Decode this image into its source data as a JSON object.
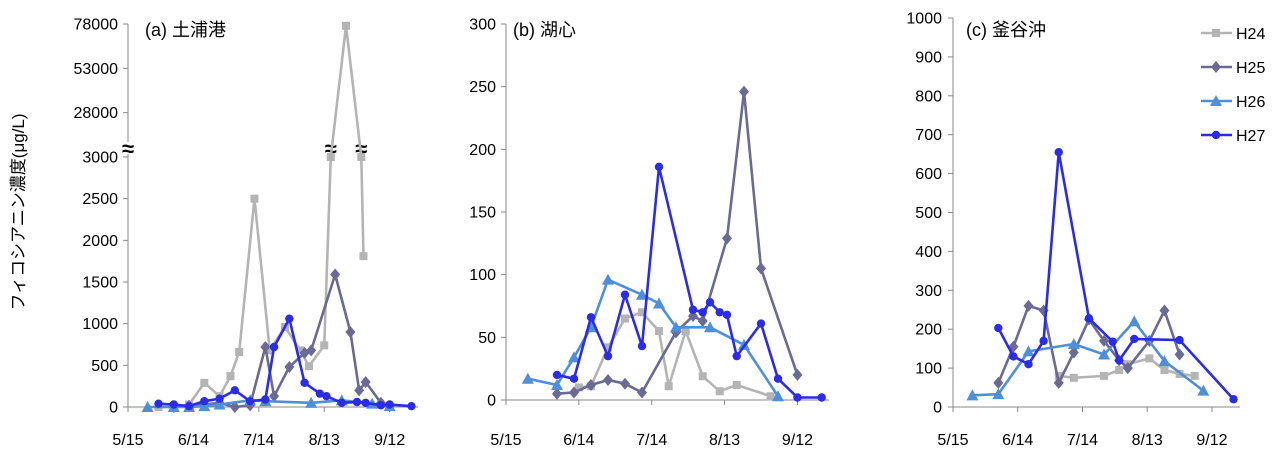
{
  "y_axis_label": "フィコシアニン濃度(μg/L)",
  "colors": {
    "H24": "#b4b4b4",
    "H25": "#6a6a94",
    "H26": "#4f8fd9",
    "H27": "#2b2bea"
  },
  "break_symbol": "≈",
  "chart_data": [
    {
      "type": "line",
      "title": "(a) 土浦港",
      "x_type": "date",
      "xticks": [
        "5/15",
        "6/14",
        "7/14",
        "8/13",
        "9/12"
      ],
      "xlim": [
        "5/15",
        "9/25"
      ],
      "y_axis": {
        "broken": true,
        "lower_range": [
          0,
          3000
        ],
        "upper_range": [
          3000,
          78000
        ],
        "ticks": [
          "0",
          "500",
          "1000",
          "1500",
          "2000",
          "2500",
          "3000",
          "28000",
          "53000",
          "78000"
        ]
      },
      "series": [
        {
          "name": "H24",
          "marker": "square",
          "points": [
            [
              "5/29",
              0
            ],
            [
              "6/5",
              0
            ],
            [
              "6/12",
              30
            ],
            [
              "6/19",
              290
            ],
            [
              "6/26",
              130
            ],
            [
              "7/1",
              370
            ],
            [
              "7/5",
              660
            ],
            [
              "7/12",
              2500
            ],
            [
              "7/19",
              680
            ],
            [
              "7/26",
              960
            ],
            [
              "8/2",
              680
            ],
            [
              "8/6",
              490
            ],
            [
              "8/13",
              740
            ],
            [
              "8/16",
              3000
            ],
            [
              "8/23",
              77000
            ],
            [
              "8/30",
              3000
            ],
            [
              "8/31",
              1810
            ]
          ]
        },
        {
          "name": "H25",
          "marker": "diamond",
          "points": [
            [
              "6/5",
              0
            ],
            [
              "6/12",
              15
            ],
            [
              "6/19",
              30
            ],
            [
              "6/26",
              50
            ],
            [
              "7/3",
              0
            ],
            [
              "7/10",
              20
            ],
            [
              "7/17",
              720
            ],
            [
              "7/21",
              130
            ],
            [
              "7/28",
              480
            ],
            [
              "8/4",
              650
            ],
            [
              "8/7",
              680
            ],
            [
              "8/18",
              1590
            ],
            [
              "8/25",
              900
            ],
            [
              "8/29",
              200
            ],
            [
              "9/1",
              300
            ],
            [
              "9/8",
              50
            ],
            [
              "9/12",
              10
            ]
          ]
        },
        {
          "name": "H26",
          "marker": "triangle",
          "points": [
            [
              "5/24",
              0
            ],
            [
              "6/5",
              0
            ],
            [
              "6/12",
              0
            ],
            [
              "6/19",
              10
            ],
            [
              "6/26",
              30
            ],
            [
              "7/10",
              80
            ],
            [
              "7/17",
              70
            ],
            [
              "8/7",
              50
            ],
            [
              "8/21",
              80
            ],
            [
              "9/4",
              40
            ],
            [
              "9/12",
              10
            ]
          ]
        },
        {
          "name": "H27",
          "marker": "circle",
          "points": [
            [
              "5/29",
              40
            ],
            [
              "6/5",
              30
            ],
            [
              "6/12",
              10
            ],
            [
              "6/19",
              70
            ],
            [
              "6/26",
              100
            ],
            [
              "7/3",
              200
            ],
            [
              "7/10",
              70
            ],
            [
              "7/17",
              90
            ],
            [
              "7/21",
              720
            ],
            [
              "7/28",
              1060
            ],
            [
              "8/4",
              290
            ],
            [
              "8/11",
              160
            ],
            [
              "8/14",
              130
            ],
            [
              "8/21",
              50
            ],
            [
              "8/28",
              60
            ],
            [
              "9/1",
              50
            ],
            [
              "9/8",
              20
            ],
            [
              "9/12",
              30
            ],
            [
              "9/22",
              10
            ]
          ]
        }
      ]
    },
    {
      "type": "line",
      "title": "(b) 湖心",
      "x_type": "date",
      "xticks": [
        "5/15",
        "6/14",
        "7/14",
        "8/13",
        "9/12"
      ],
      "xlim": [
        "5/15",
        "9/25"
      ],
      "ylim": [
        0,
        300
      ],
      "yticks": [
        "0",
        "50",
        "100",
        "150",
        "200",
        "250",
        "300"
      ],
      "series": [
        {
          "name": "H24",
          "marker": "square",
          "points": [
            [
              "6/14",
              10
            ],
            [
              "6/19",
              11
            ],
            [
              "6/26",
              42
            ],
            [
              "7/3",
              65
            ],
            [
              "7/10",
              70
            ],
            [
              "7/17",
              55
            ],
            [
              "7/21",
              11
            ],
            [
              "7/28",
              55
            ],
            [
              "8/4",
              19
            ],
            [
              "8/11",
              7
            ],
            [
              "8/18",
              12
            ],
            [
              "9/1",
              3
            ]
          ]
        },
        {
          "name": "H25",
          "marker": "diamond",
          "points": [
            [
              "6/5",
              5
            ],
            [
              "6/12",
              6
            ],
            [
              "6/19",
              12
            ],
            [
              "6/26",
              16
            ],
            [
              "7/3",
              13
            ],
            [
              "7/10",
              6
            ],
            [
              "7/24",
              54
            ],
            [
              "7/31",
              67
            ],
            [
              "8/4",
              63
            ],
            [
              "8/14",
              129
            ],
            [
              "8/21",
              246
            ],
            [
              "8/28",
              105
            ],
            [
              "9/12",
              20
            ]
          ]
        },
        {
          "name": "H26",
          "marker": "triangle",
          "points": [
            [
              "5/24",
              17
            ],
            [
              "6/5",
              12
            ],
            [
              "6/12",
              34
            ],
            [
              "6/19",
              58
            ],
            [
              "6/26",
              96
            ],
            [
              "7/10",
              84
            ],
            [
              "7/17",
              77
            ],
            [
              "7/24",
              58
            ],
            [
              "8/7",
              58
            ],
            [
              "8/21",
              44
            ],
            [
              "9/4",
              3
            ]
          ]
        },
        {
          "name": "H27",
          "marker": "circle",
          "points": [
            [
              "6/5",
              20
            ],
            [
              "6/12",
              17
            ],
            [
              "6/19",
              66
            ],
            [
              "6/26",
              35
            ],
            [
              "7/3",
              84
            ],
            [
              "7/10",
              43
            ],
            [
              "7/17",
              186
            ],
            [
              "7/31",
              72
            ],
            [
              "8/4",
              70
            ],
            [
              "8/7",
              78
            ],
            [
              "8/11",
              70
            ],
            [
              "8/14",
              68
            ],
            [
              "8/18",
              35
            ],
            [
              "8/28",
              61
            ],
            [
              "9/4",
              17
            ],
            [
              "9/12",
              2
            ],
            [
              "9/22",
              2
            ]
          ]
        }
      ]
    },
    {
      "type": "line",
      "title": "(c) 釜谷沖",
      "x_type": "date",
      "xticks": [
        "5/15",
        "6/14",
        "7/14",
        "8/13",
        "9/12"
      ],
      "xlim": [
        "5/15",
        "9/25"
      ],
      "ylim": [
        0,
        1000
      ],
      "yticks": [
        "0",
        "100",
        "200",
        "300",
        "400",
        "500",
        "600",
        "700",
        "800",
        "900",
        "1000"
      ],
      "series": [
        {
          "name": "H24",
          "marker": "square",
          "points": [
            [
              "7/3",
              80
            ],
            [
              "7/10",
              75
            ],
            [
              "7/24",
              80
            ],
            [
              "7/31",
              95
            ],
            [
              "8/4",
              110
            ],
            [
              "8/14",
              125
            ],
            [
              "8/21",
              95
            ],
            [
              "8/28",
              85
            ],
            [
              "9/4",
              80
            ]
          ]
        },
        {
          "name": "H25",
          "marker": "diamond",
          "points": [
            [
              "6/5",
              62
            ],
            [
              "6/12",
              155
            ],
            [
              "6/19",
              260
            ],
            [
              "6/26",
              248
            ],
            [
              "7/3",
              62
            ],
            [
              "7/10",
              140
            ],
            [
              "7/17",
              225
            ],
            [
              "7/24",
              170
            ],
            [
              "7/31",
              120
            ],
            [
              "8/4",
              100
            ],
            [
              "8/14",
              170
            ],
            [
              "8/21",
              248
            ],
            [
              "8/28",
              135
            ]
          ]
        },
        {
          "name": "H26",
          "marker": "triangle",
          "points": [
            [
              "5/24",
              30
            ],
            [
              "6/5",
              33
            ],
            [
              "6/19",
              143
            ],
            [
              "7/10",
              162
            ],
            [
              "7/24",
              135
            ],
            [
              "8/7",
              220
            ],
            [
              "8/21",
              118
            ],
            [
              "9/8",
              42
            ]
          ]
        },
        {
          "name": "H27",
          "marker": "circle",
          "points": [
            [
              "6/5",
              203
            ],
            [
              "6/12",
              130
            ],
            [
              "6/19",
              110
            ],
            [
              "6/26",
              170
            ],
            [
              "7/3",
              655
            ],
            [
              "7/17",
              228
            ],
            [
              "7/28",
              168
            ],
            [
              "7/31",
              120
            ],
            [
              "8/7",
              175
            ],
            [
              "8/28",
              172
            ],
            [
              "9/22",
              20
            ]
          ]
        }
      ]
    }
  ],
  "legend": {
    "placement": "top-right",
    "entries": [
      {
        "label": "H24",
        "marker": "square"
      },
      {
        "label": "H25",
        "marker": "diamond"
      },
      {
        "label": "H26",
        "marker": "triangle"
      },
      {
        "label": "H27",
        "marker": "circle"
      }
    ]
  }
}
